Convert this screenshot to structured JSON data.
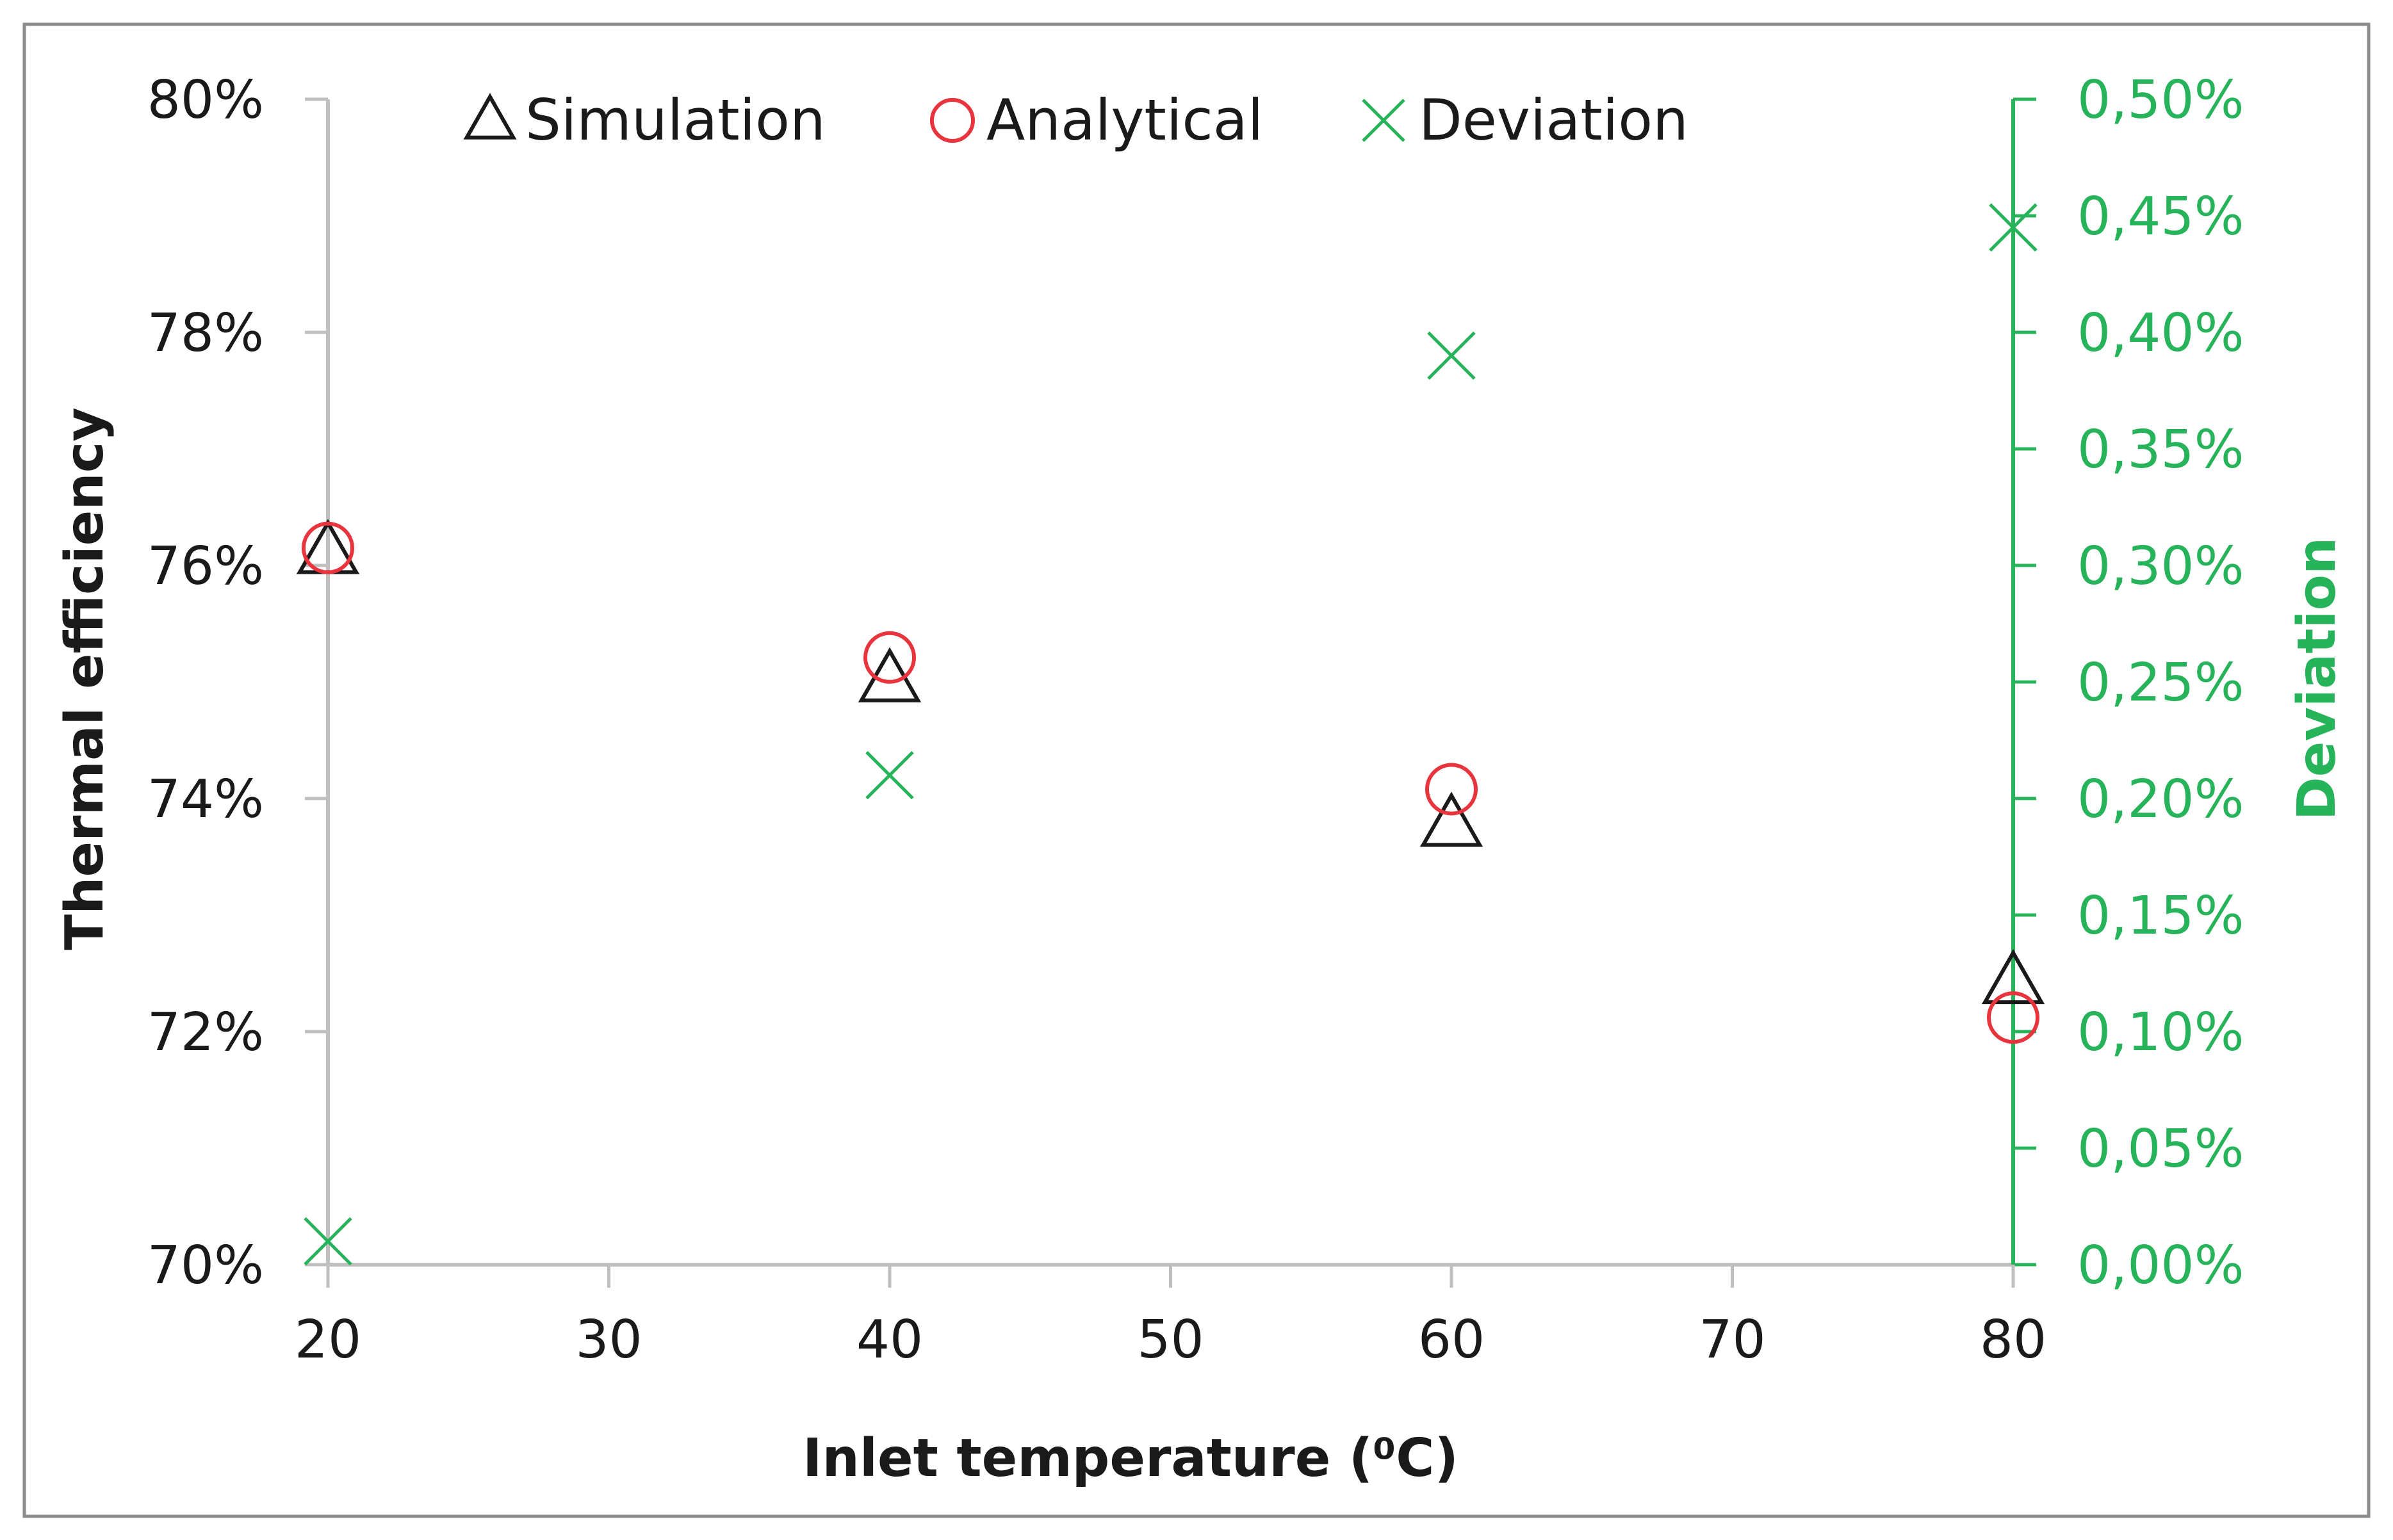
{
  "chart_data": {
    "type": "scatter",
    "title": "",
    "xlabel": "Inlet temperature (⁰C)",
    "ylabel": "Thermal efficiency",
    "y2label": "Deviation",
    "xlim": [
      20,
      80
    ],
    "ylim": [
      0.7,
      0.8
    ],
    "y2lim": [
      0.0,
      0.005
    ],
    "x_ticks": [
      20,
      30,
      40,
      50,
      60,
      70,
      80
    ],
    "x_tick_labels": [
      "20",
      "30",
      "40",
      "50",
      "60",
      "70",
      "80"
    ],
    "y_ticks": [
      0.7,
      0.72,
      0.74,
      0.76,
      0.78,
      0.8
    ],
    "y_tick_labels": [
      "70%",
      "72%",
      "74%",
      "76%",
      "78%",
      "80%"
    ],
    "y2_ticks": [
      0.0,
      0.0005,
      0.001,
      0.0015,
      0.002,
      0.0025,
      0.003,
      0.0035,
      0.004,
      0.0045,
      0.005
    ],
    "y2_tick_labels": [
      "0,00%",
      "0,05%",
      "0,10%",
      "0,15%",
      "0,20%",
      "0,25%",
      "0,30%",
      "0,35%",
      "0,40%",
      "0,45%",
      "0,50%"
    ],
    "grid": false,
    "legend_position": "top",
    "series": [
      {
        "name": "Simulation",
        "marker": "triangle",
        "axis": "left",
        "color": "#1a1a1a",
        "x": [
          20,
          40,
          60,
          80
        ],
        "y": [
          0.7612,
          0.7502,
          0.7378,
          0.7243
        ]
      },
      {
        "name": "Analytical",
        "marker": "circle",
        "axis": "left",
        "color": "#e8343c",
        "x": [
          20,
          40,
          60,
          80
        ],
        "y": [
          0.7615,
          0.7521,
          0.7408,
          0.7212
        ]
      },
      {
        "name": "Deviation",
        "marker": "x",
        "axis": "right",
        "color": "#27b35a",
        "x": [
          20,
          40,
          60,
          80
        ],
        "y": [
          0.0001,
          0.0021,
          0.0039,
          0.00445
        ]
      }
    ],
    "colors": {
      "left_axis": "#bfbfbf",
      "right_axis": "#27b35a",
      "right_text": "#27b35a",
      "border": "#8c8c8c"
    }
  }
}
